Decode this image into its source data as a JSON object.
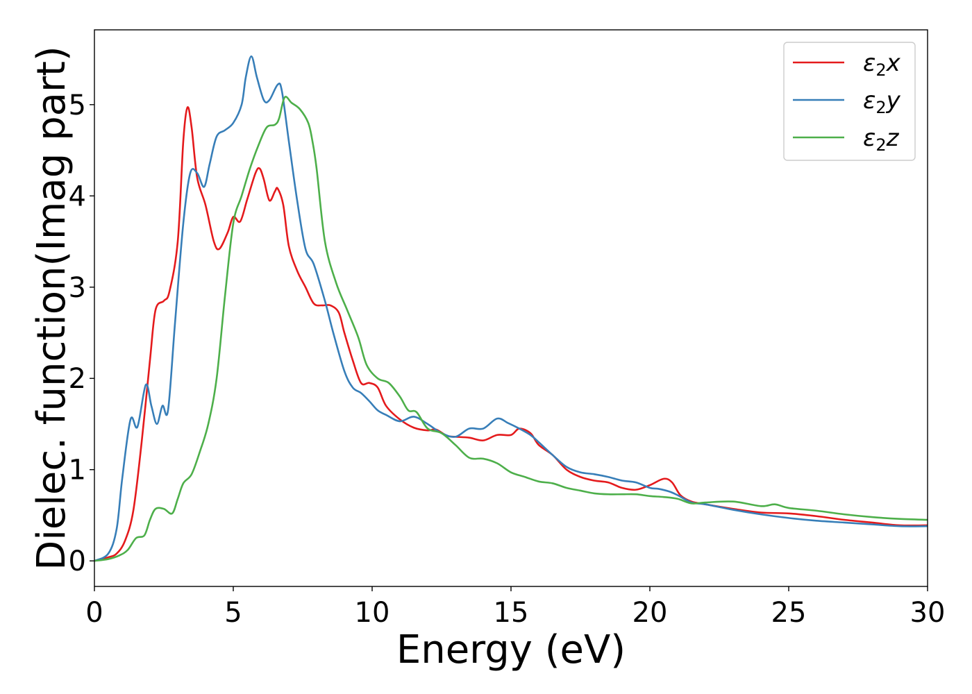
{
  "chart_data": {
    "type": "line",
    "xlabel": "Energy (eV)",
    "ylabel": "Dielec. function(Imag part)",
    "xlim": [
      0,
      30
    ],
    "ylim": [
      -0.28,
      5.82
    ],
    "xticks": [
      0,
      5,
      10,
      15,
      20,
      25,
      30
    ],
    "yticks": [
      0,
      1,
      2,
      3,
      4,
      5
    ],
    "grid": false,
    "legend_position": "top-right",
    "series": [
      {
        "name": "ε₂x",
        "legend_base": "ε",
        "legend_sub": "2",
        "legend_suffix": "x",
        "color": "#e41a1c",
        "x": [
          0,
          0.5,
          0.8,
          1.1,
          1.4,
          1.7,
          2.0,
          2.2,
          2.5,
          2.7,
          3.0,
          3.2,
          3.35,
          3.5,
          3.7,
          4.0,
          4.3,
          4.5,
          4.8,
          5.0,
          5.25,
          5.5,
          5.8,
          5.95,
          6.1,
          6.3,
          6.5,
          6.6,
          6.8,
          7.0,
          7.3,
          7.6,
          7.9,
          8.2,
          8.5,
          8.8,
          9.0,
          9.3,
          9.6,
          9.9,
          10.2,
          10.5,
          11.0,
          11.5,
          12.0,
          12.3,
          12.7,
          13.0,
          13.5,
          14.0,
          14.5,
          15.0,
          15.3,
          15.7,
          16.0,
          16.5,
          17.0,
          17.5,
          18.0,
          18.5,
          19.0,
          19.5,
          20.0,
          20.5,
          20.8,
          21.1,
          21.5,
          22.0,
          23.0,
          24.0,
          25.0,
          26.0,
          27.0,
          28.0,
          29.0,
          30.0
        ],
        "y": [
          0,
          0.04,
          0.08,
          0.22,
          0.55,
          1.3,
          2.2,
          2.75,
          2.85,
          2.95,
          3.5,
          4.6,
          4.97,
          4.75,
          4.2,
          3.9,
          3.5,
          3.42,
          3.6,
          3.77,
          3.72,
          3.96,
          4.25,
          4.3,
          4.18,
          3.95,
          4.05,
          4.08,
          3.9,
          3.45,
          3.18,
          3.0,
          2.82,
          2.8,
          2.8,
          2.72,
          2.5,
          2.2,
          1.95,
          1.95,
          1.9,
          1.7,
          1.55,
          1.46,
          1.43,
          1.44,
          1.37,
          1.36,
          1.35,
          1.32,
          1.38,
          1.38,
          1.45,
          1.4,
          1.27,
          1.16,
          1.0,
          0.92,
          0.88,
          0.86,
          0.8,
          0.78,
          0.83,
          0.9,
          0.86,
          0.72,
          0.65,
          0.62,
          0.57,
          0.53,
          0.52,
          0.49,
          0.45,
          0.42,
          0.39,
          0.39
        ]
      },
      {
        "name": "ε₂y",
        "legend_base": "ε",
        "legend_sub": "2",
        "legend_suffix": "y",
        "color": "#377eb8",
        "x": [
          0,
          0.5,
          0.8,
          1.0,
          1.3,
          1.55,
          1.85,
          2.05,
          2.25,
          2.45,
          2.65,
          2.9,
          3.2,
          3.45,
          3.7,
          3.95,
          4.15,
          4.4,
          4.7,
          5.0,
          5.3,
          5.45,
          5.65,
          5.85,
          6.1,
          6.3,
          6.6,
          6.75,
          7.0,
          7.3,
          7.6,
          7.9,
          8.3,
          8.6,
          9.0,
          9.3,
          9.6,
          9.9,
          10.2,
          10.5,
          11.0,
          11.5,
          12.0,
          12.5,
          13.0,
          13.5,
          14.0,
          14.5,
          14.9,
          15.3,
          15.7,
          16.0,
          16.5,
          17.0,
          17.5,
          18.0,
          18.5,
          19.0,
          19.5,
          20.0,
          20.3,
          20.7,
          21.0,
          21.5,
          22.0,
          23.0,
          24.0,
          25.0,
          26.0,
          27.0,
          28.0,
          29.0,
          30.0
        ],
        "y": [
          0,
          0.08,
          0.35,
          0.9,
          1.55,
          1.47,
          1.93,
          1.7,
          1.5,
          1.7,
          1.65,
          2.6,
          3.7,
          4.25,
          4.25,
          4.1,
          4.35,
          4.65,
          4.72,
          4.8,
          5.0,
          5.3,
          5.53,
          5.3,
          5.05,
          5.05,
          5.22,
          5.15,
          4.6,
          3.95,
          3.42,
          3.25,
          2.85,
          2.5,
          2.08,
          1.9,
          1.84,
          1.75,
          1.65,
          1.6,
          1.53,
          1.58,
          1.5,
          1.4,
          1.36,
          1.45,
          1.45,
          1.56,
          1.51,
          1.45,
          1.38,
          1.3,
          1.16,
          1.03,
          0.97,
          0.95,
          0.92,
          0.88,
          0.86,
          0.8,
          0.79,
          0.76,
          0.72,
          0.64,
          0.62,
          0.56,
          0.51,
          0.47,
          0.44,
          0.42,
          0.4,
          0.38,
          0.38
        ]
      },
      {
        "name": "ε₂z",
        "legend_base": "ε",
        "legend_sub": "2",
        "legend_suffix": "z",
        "color": "#4daf4a",
        "x": [
          0,
          0.5,
          0.9,
          1.2,
          1.5,
          1.8,
          2.0,
          2.2,
          2.5,
          2.8,
          3.0,
          3.2,
          3.5,
          3.8,
          4.1,
          4.4,
          4.7,
          5.0,
          5.3,
          5.6,
          5.9,
          6.2,
          6.5,
          6.65,
          6.85,
          7.1,
          7.4,
          7.7,
          7.85,
          8.0,
          8.3,
          8.7,
          9.1,
          9.5,
          9.8,
          10.2,
          10.6,
          11.0,
          11.3,
          11.6,
          12.0,
          12.5,
          13.0,
          13.5,
          14.0,
          14.5,
          15.0,
          15.5,
          16.0,
          16.5,
          17.0,
          17.5,
          18.0,
          18.5,
          19.0,
          19.5,
          20.0,
          20.5,
          21.0,
          21.5,
          22.0,
          23.0,
          24.0,
          24.5,
          25.0,
          26.0,
          27.0,
          28.0,
          29.0,
          30.0
        ],
        "y": [
          0,
          0.02,
          0.06,
          0.12,
          0.25,
          0.28,
          0.45,
          0.57,
          0.57,
          0.52,
          0.68,
          0.85,
          0.95,
          1.2,
          1.5,
          2.0,
          2.9,
          3.7,
          4.0,
          4.3,
          4.55,
          4.75,
          4.78,
          4.85,
          5.08,
          5.02,
          4.95,
          4.8,
          4.6,
          4.3,
          3.5,
          3.05,
          2.75,
          2.45,
          2.15,
          2.0,
          1.95,
          1.8,
          1.65,
          1.63,
          1.45,
          1.4,
          1.27,
          1.13,
          1.12,
          1.07,
          0.97,
          0.92,
          0.87,
          0.85,
          0.8,
          0.77,
          0.74,
          0.73,
          0.73,
          0.73,
          0.71,
          0.7,
          0.68,
          0.63,
          0.64,
          0.65,
          0.6,
          0.62,
          0.58,
          0.55,
          0.51,
          0.48,
          0.46,
          0.45
        ]
      }
    ]
  }
}
